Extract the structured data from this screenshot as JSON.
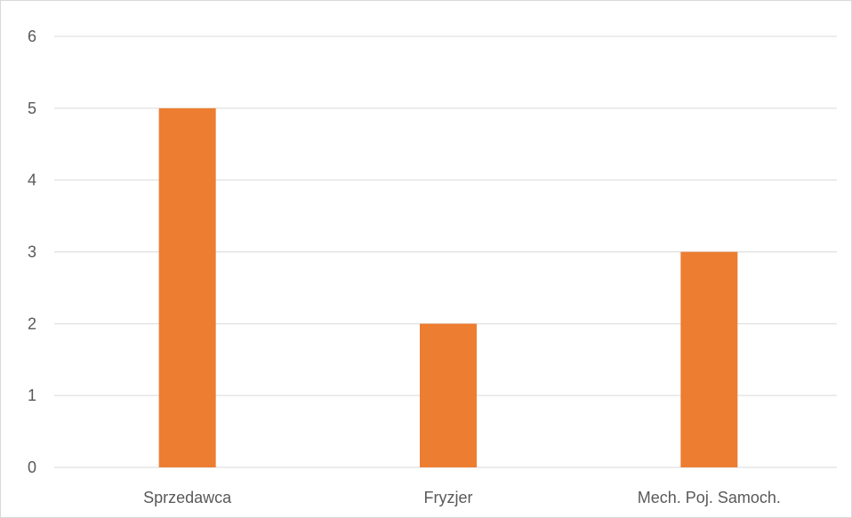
{
  "chart_data": {
    "type": "bar",
    "title": "",
    "xlabel": "",
    "ylabel": "",
    "categories": [
      "Sprzedawca",
      "Fryzjer",
      "Mech. Poj. Samoch."
    ],
    "values": [
      5,
      2,
      3
    ],
    "ylim": [
      0,
      6
    ],
    "yticks": [
      "0",
      "1",
      "2",
      "3",
      "4",
      "5",
      "6"
    ],
    "bar_color": "#ED7D31",
    "grid": true,
    "legend": "none"
  }
}
